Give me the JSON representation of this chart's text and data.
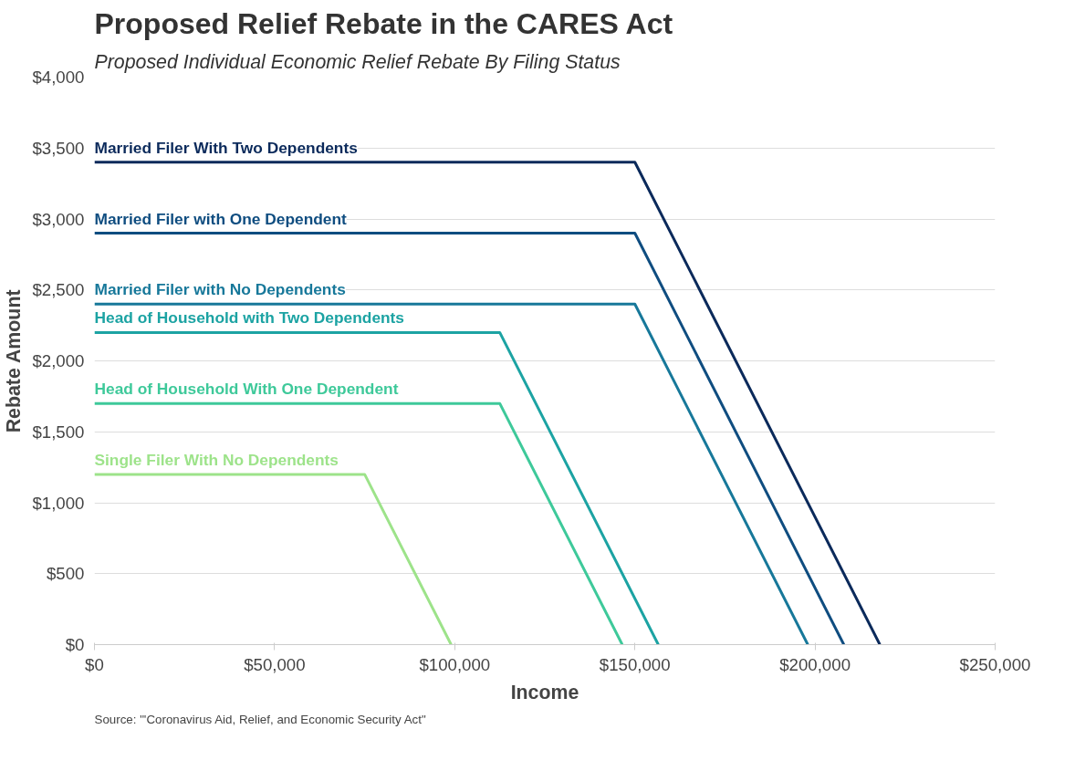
{
  "chart_data": {
    "type": "line",
    "title": "Proposed Relief Rebate in the CARES Act",
    "subtitle": "Proposed Individual Economic Relief Rebate By Filing Status",
    "xlabel": "Income",
    "ylabel": "Rebate Amount",
    "series": [
      {
        "name": "Married Filer With Two Dependents",
        "color": "#0b2a5b",
        "x": [
          0,
          150000,
          218000
        ],
        "values": [
          3400,
          3400,
          0
        ]
      },
      {
        "name": "Married Filer with One Dependent",
        "color": "#0f4d80",
        "x": [
          0,
          150000,
          208000
        ],
        "values": [
          2900,
          2900,
          0
        ]
      },
      {
        "name": "Married Filer with No Dependents",
        "color": "#17789a",
        "x": [
          0,
          150000,
          198000
        ],
        "values": [
          2400,
          2400,
          0
        ]
      },
      {
        "name": "Head of Household with Two Dependents",
        "color": "#1ca3a3",
        "x": [
          0,
          112500,
          156500
        ],
        "values": [
          2200,
          2200,
          0
        ]
      },
      {
        "name": "Head of Household With One Dependent",
        "color": "#3ec99a",
        "x": [
          0,
          112500,
          146500
        ],
        "values": [
          1700,
          1700,
          0
        ]
      },
      {
        "name": "Single Filer With No Dependents",
        "color": "#9de38a",
        "x": [
          0,
          75000,
          99000
        ],
        "values": [
          1200,
          1200,
          0
        ]
      }
    ],
    "xlim": [
      0,
      250000
    ],
    "ylim": [
      0,
      4000
    ],
    "xticks": [
      {
        "value": 0,
        "label": "$0"
      },
      {
        "value": 50000,
        "label": "$50,000"
      },
      {
        "value": 100000,
        "label": "$100,000"
      },
      {
        "value": 150000,
        "label": "$150,000"
      },
      {
        "value": 200000,
        "label": "$200,000"
      },
      {
        "value": 250000,
        "label": "$250,000"
      }
    ],
    "yticks": [
      {
        "value": 0,
        "label": "$0"
      },
      {
        "value": 500,
        "label": "$500"
      },
      {
        "value": 1000,
        "label": "$1,000"
      },
      {
        "value": 1500,
        "label": "$1,500"
      },
      {
        "value": 2000,
        "label": "$2,000"
      },
      {
        "value": 2500,
        "label": "$2,500"
      },
      {
        "value": 3000,
        "label": "$3,000"
      },
      {
        "value": 3500,
        "label": "$3,500"
      },
      {
        "value": 4000,
        "label": "$4,000"
      }
    ],
    "grid": "y",
    "legend": false,
    "line_style": "solid",
    "marker": "none",
    "annotations": [
      "Source: \"'Coronavirus Aid, Relief, and Economic Security Act\""
    ]
  }
}
